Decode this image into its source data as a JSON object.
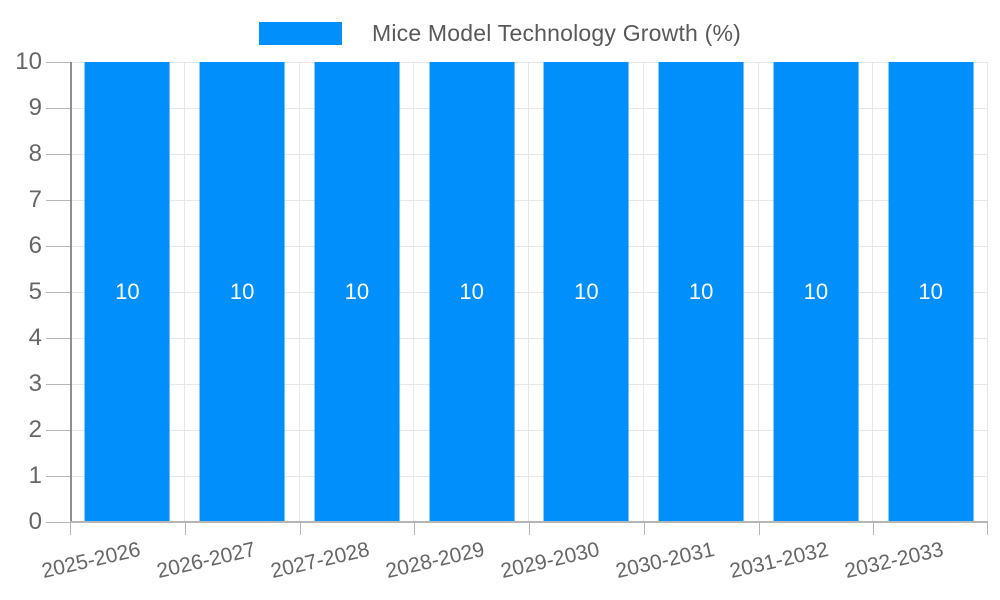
{
  "chart_data": {
    "type": "bar",
    "title": "Mice Model Technology Growth (%)",
    "categories": [
      "2025-2026",
      "2026-2027",
      "2027-2028",
      "2028-2029",
      "2029-2030",
      "2030-2031",
      "2031-2032",
      "2032-2033"
    ],
    "values": [
      10,
      10,
      10,
      10,
      10,
      10,
      10,
      10
    ],
    "xlabel": "",
    "ylabel": "",
    "ylim": [
      0,
      10
    ],
    "ytick_step": 1,
    "grid": true,
    "legend_position": "top",
    "colors": {
      "bar": "#008FFB",
      "value_label": "#ffffff",
      "gridline": "#e7e7e7",
      "axis_line": "#8e8e8e",
      "tick": "#b6b6b6",
      "axis_label": "#666666",
      "legend_text": "#58595b"
    }
  }
}
